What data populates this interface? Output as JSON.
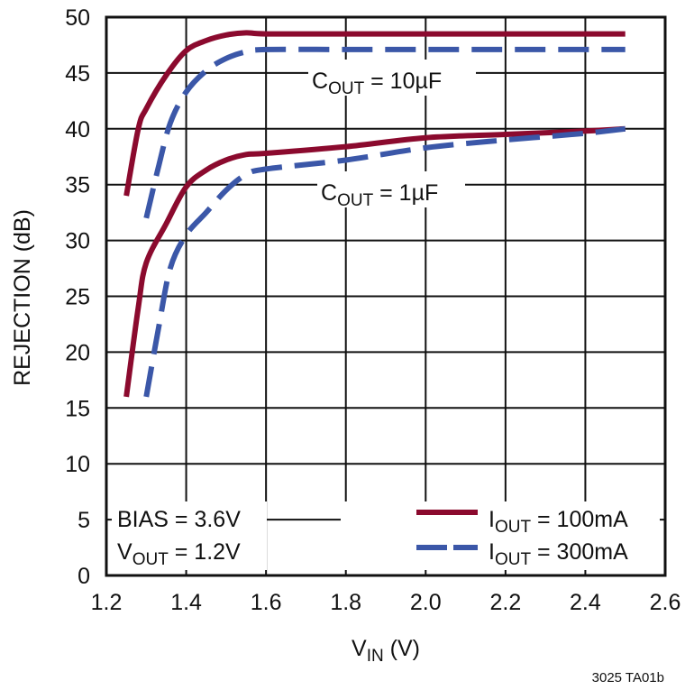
{
  "chart_data": {
    "type": "line",
    "title": "",
    "xlabel": "VIN (V)",
    "xlabel_main": "V",
    "xlabel_sub": "IN",
    "xlabel_unit": " (V)",
    "ylabel": "REJECTION (dB)",
    "xlim": [
      1.2,
      2.6
    ],
    "ylim": [
      0,
      50
    ],
    "x_ticks": [
      "1.2",
      "1.4",
      "1.6",
      "1.8",
      "2.0",
      "2.2",
      "2.4",
      "2.6"
    ],
    "y_ticks": [
      "0",
      "5",
      "10",
      "15",
      "20",
      "25",
      "30",
      "35",
      "40",
      "45",
      "50"
    ],
    "grid": true,
    "series": [
      {
        "name": "IOUT = 100mA, COUT = 10µF",
        "style": "solid",
        "color": "#8B0A2E",
        "x": [
          1.25,
          1.28,
          1.3,
          1.35,
          1.4,
          1.45,
          1.5,
          1.55,
          1.6,
          1.8,
          2.0,
          2.2,
          2.5
        ],
        "y": [
          34,
          40,
          41.8,
          44.8,
          47,
          47.9,
          48.4,
          48.6,
          48.5,
          48.5,
          48.5,
          48.5,
          48.5
        ]
      },
      {
        "name": "IOUT = 300mA, COUT = 10µF",
        "style": "dashed",
        "color": "#3B57A8",
        "x": [
          1.3,
          1.33,
          1.36,
          1.4,
          1.45,
          1.5,
          1.55,
          1.6,
          1.8,
          2.0,
          2.2,
          2.5
        ],
        "y": [
          32,
          36.5,
          40.5,
          43.3,
          45.2,
          46.3,
          46.9,
          47.1,
          47.1,
          47.1,
          47.1,
          47.1
        ]
      },
      {
        "name": "IOUT = 100mA, COUT = 1µF",
        "style": "solid",
        "color": "#8B0A2E",
        "x": [
          1.25,
          1.28,
          1.3,
          1.35,
          1.4,
          1.45,
          1.5,
          1.55,
          1.6,
          1.8,
          2.0,
          2.2,
          2.4,
          2.5
        ],
        "y": [
          16,
          24,
          28,
          31.5,
          34.8,
          36.3,
          37.2,
          37.7,
          37.8,
          38.4,
          39.2,
          39.5,
          39.8,
          40
        ]
      },
      {
        "name": "IOUT = 300mA, COUT = 1µF",
        "style": "dashed",
        "color": "#3B57A8",
        "x": [
          1.3,
          1.33,
          1.36,
          1.4,
          1.45,
          1.5,
          1.55,
          1.6,
          1.8,
          2.0,
          2.2,
          2.4,
          2.5
        ],
        "y": [
          16,
          22,
          27.5,
          30.5,
          32.5,
          34.5,
          35.9,
          36.4,
          37.2,
          38.3,
          39,
          39.6,
          40
        ]
      }
    ],
    "annotations": [
      {
        "text": "COUT = 10µF",
        "main": "C",
        "sub": "OUT",
        "rest": " = 10µF"
      },
      {
        "text": "COUT = 1µF",
        "main": "C",
        "sub": "OUT",
        "rest": " = 1µF"
      },
      {
        "text": "BIAS = 3.6V"
      },
      {
        "text": "VOUT = 1.2V",
        "main": "V",
        "sub": "OUT",
        "rest": " = 1.2V"
      }
    ],
    "legend": {
      "position": "lower right",
      "entries": [
        {
          "label": "IOUT = 100mA",
          "main": "I",
          "sub": "OUT",
          "rest": " = 100mA",
          "style": "solid",
          "color": "#8B0A2E"
        },
        {
          "label": "IOUT = 300mA",
          "main": "I",
          "sub": "OUT",
          "rest": " = 300mA",
          "style": "dashed",
          "color": "#3B57A8"
        }
      ]
    },
    "figure_id": "3025 TA01b"
  }
}
